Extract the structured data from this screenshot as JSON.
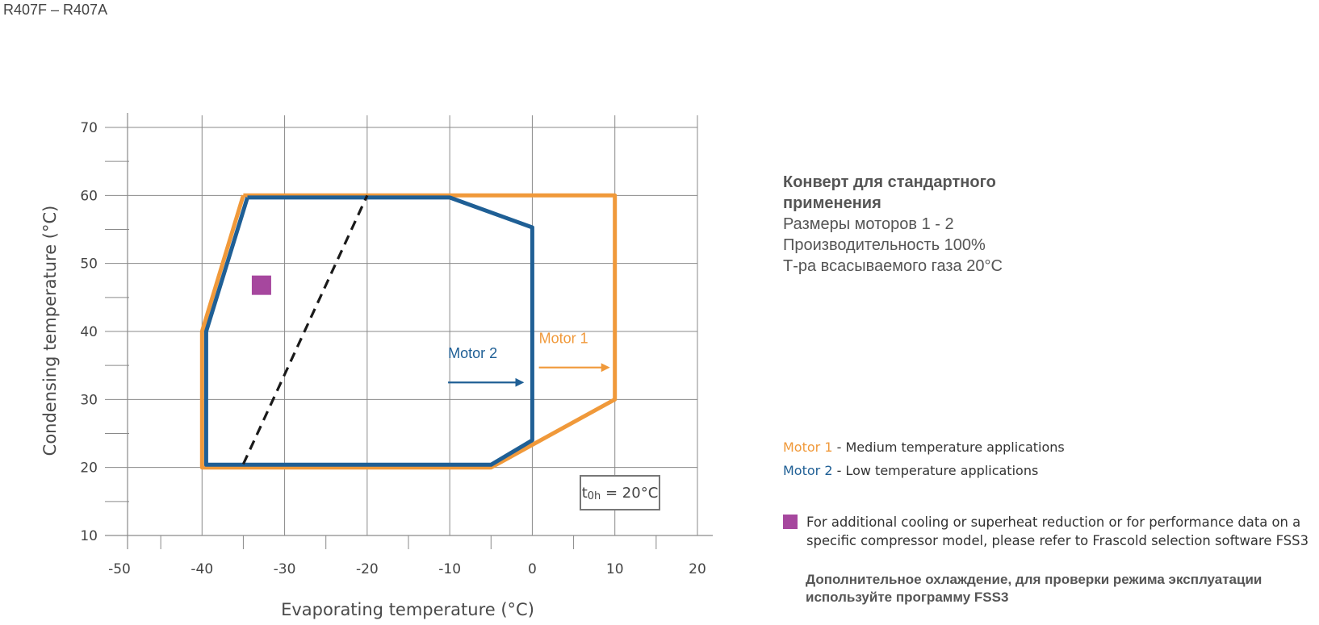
{
  "page": {
    "title": "R407F – R407A"
  },
  "colors": {
    "motor1": "#F0993A",
    "motor2": "#1F5F95",
    "highlight": "#A6479E",
    "dashed": "#1a1a1a",
    "grid": "#8a8a8a"
  },
  "chart_data": {
    "type": "line",
    "xlabel": "Evaporating temperature (°C)",
    "ylabel": "Condensing temperature (°C)",
    "xlim": [
      -50,
      20
    ],
    "ylim": [
      10,
      70
    ],
    "xticks": [
      "-50",
      "-40",
      "-30",
      "-20",
      "-10",
      "0",
      "10",
      "20"
    ],
    "yticks": [
      "10",
      "20",
      "30",
      "40",
      "50",
      "60",
      "70"
    ],
    "grid": true,
    "series": [
      {
        "name": "Motor 1",
        "color": "#F0993A",
        "closed": true,
        "points": [
          [
            -35,
            60
          ],
          [
            10,
            60
          ],
          [
            10,
            30
          ],
          [
            -5,
            20
          ],
          [
            -40,
            20
          ],
          [
            -40,
            40
          ],
          [
            -35,
            60
          ]
        ]
      },
      {
        "name": "Motor 2",
        "color": "#1F5F95",
        "closed": true,
        "points": [
          [
            -34.5,
            59.7
          ],
          [
            -10,
            59.7
          ],
          [
            0,
            55.3
          ],
          [
            0,
            24
          ],
          [
            -5,
            20.4
          ],
          [
            -39.5,
            20.4
          ],
          [
            -39.5,
            40
          ],
          [
            -34.5,
            59.7
          ]
        ]
      },
      {
        "name": "",
        "style": "dashed",
        "points": [
          [
            -35,
            20.5
          ],
          [
            -20,
            60
          ]
        ]
      }
    ],
    "marker": {
      "x": -32.8,
      "y": 46.8
    },
    "annotations": {
      "motor2_label": "Motor 2",
      "motor1_label": "Motor 1",
      "motor2_arrow": {
        "from": [
          -10.2,
          32.5
        ],
        "to": [
          -1.2,
          32.5
        ]
      },
      "motor1_arrow": {
        "from": [
          0.8,
          34.7
        ],
        "to": [
          9.2,
          34.7
        ]
      },
      "toh_t": "t",
      "toh_sub": "0h",
      "toh_rest": " = 20°C"
    }
  },
  "envelope": {
    "heading_line1": "Конверт для стандартного",
    "heading_line2": "применения",
    "line1": "Размеры моторов 1 - 2",
    "line2": "Производительность 100%",
    "line3": "Т-ра всасываемого газа 20°C"
  },
  "legend": {
    "motor1_name": "Motor 1",
    "motor1_desc": " - Medium temperature applications",
    "motor2_name": "Motor 2",
    "motor2_desc": " - Low temperature applications"
  },
  "note": {
    "en": "For additional cooling or superheat reduction or for performance data on a specific compressor model, please refer to Frascold selection software FSS3",
    "ru": "Дополнительное охлаждение, для проверки режима эксплуатации используйте программу FSS3"
  }
}
